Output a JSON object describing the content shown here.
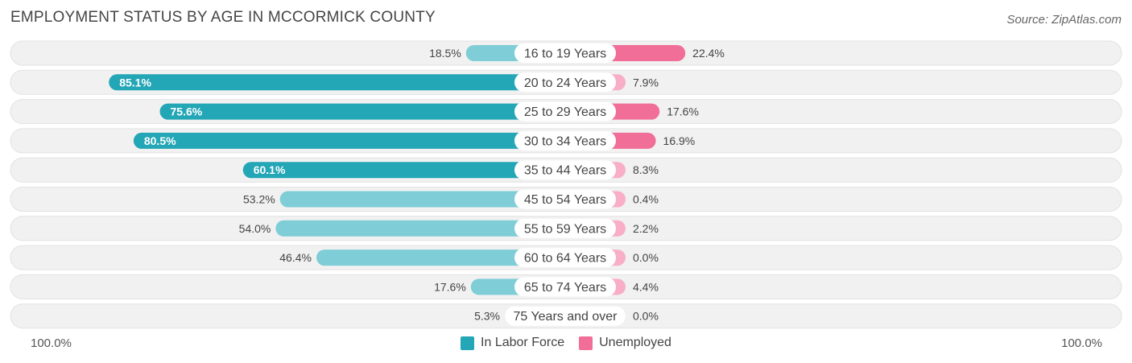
{
  "title": "EMPLOYMENT STATUS BY AGE IN MCCORMICK COUNTY",
  "source": "Source: ZipAtlas.com",
  "colors": {
    "labor_strong": "#23a6b6",
    "labor_light": "#7fcdd6",
    "unemp_strong": "#f06e98",
    "unemp_light": "#f8aec7",
    "track": "#f1f1f1"
  },
  "chart_data": {
    "type": "bar",
    "orientation": "diverging-horizontal",
    "title": "EMPLOYMENT STATUS BY AGE IN MCCORMICK COUNTY",
    "categories": [
      "16 to 19 Years",
      "20 to 24 Years",
      "25 to 29 Years",
      "30 to 34 Years",
      "35 to 44 Years",
      "45 to 54 Years",
      "55 to 59 Years",
      "60 to 64 Years",
      "65 to 74 Years",
      "75 Years and over"
    ],
    "series": [
      {
        "name": "In Labor Force",
        "values": [
          18.5,
          85.1,
          75.6,
          80.5,
          60.1,
          53.2,
          54.0,
          46.4,
          17.6,
          5.3
        ],
        "labels": [
          "18.5%",
          "85.1%",
          "75.6%",
          "80.5%",
          "60.1%",
          "53.2%",
          "54.0%",
          "46.4%",
          "17.6%",
          "5.3%"
        ]
      },
      {
        "name": "Unemployed",
        "values": [
          22.4,
          7.9,
          17.6,
          16.9,
          8.3,
          0.4,
          2.2,
          0.0,
          4.4,
          0.0
        ],
        "labels": [
          "22.4%",
          "7.9%",
          "17.6%",
          "16.9%",
          "8.3%",
          "0.4%",
          "2.2%",
          "0.0%",
          "4.4%",
          "0.0%"
        ]
      }
    ],
    "xlim": [
      -100,
      100
    ],
    "axis_left_label": "100.0%",
    "axis_right_label": "100.0%",
    "legend": [
      "In Labor Force",
      "Unemployed"
    ],
    "legend_position": "bottom-center"
  }
}
